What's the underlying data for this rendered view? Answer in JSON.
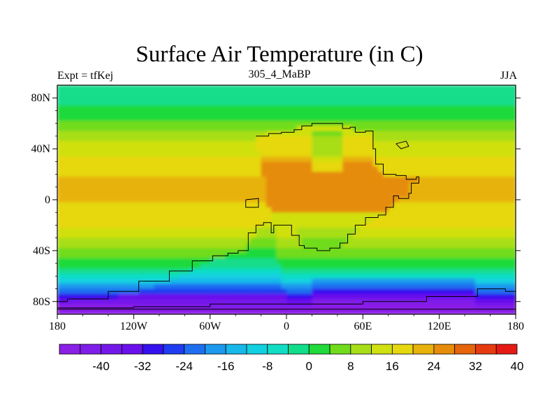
{
  "header": {
    "title": "Surface Air Temperature (in C)",
    "left": "Expt = tfKej",
    "center": "305_4_MaBP",
    "right": "JJA"
  },
  "axes": {
    "lat_ticks": [
      {
        "value": 80,
        "label": "80N"
      },
      {
        "value": 40,
        "label": "40N"
      },
      {
        "value": 0,
        "label": "0"
      },
      {
        "value": -40,
        "label": "40S"
      },
      {
        "value": -80,
        "label": "80S"
      }
    ],
    "lon_ticks": [
      {
        "value": -180,
        "label": "180"
      },
      {
        "value": -120,
        "label": "120W"
      },
      {
        "value": -60,
        "label": "60W"
      },
      {
        "value": 0,
        "label": "0"
      },
      {
        "value": 60,
        "label": "60E"
      },
      {
        "value": 120,
        "label": "120E"
      },
      {
        "value": 180,
        "label": "180"
      }
    ],
    "lon_range": [
      -180,
      180
    ],
    "lat_range": [
      -90,
      90
    ]
  },
  "colorbar": {
    "colors": [
      "#8a1fe6",
      "#7f1ee8",
      "#7418ea",
      "#6a10ec",
      "#3410ee",
      "#1f3cf0",
      "#1f6ef0",
      "#1c98ee",
      "#17b8ea",
      "#12d0e0",
      "#11ddc4",
      "#12dd8a",
      "#1fda3a",
      "#70dc1c",
      "#a8de18",
      "#d0e010",
      "#e6d810",
      "#e8b20c",
      "#e68c0a",
      "#e6640a",
      "#e63a10",
      "#e61a14"
    ],
    "labels": [
      {
        "boundary": 2,
        "text": "-40"
      },
      {
        "boundary": 4,
        "text": "-32"
      },
      {
        "boundary": 6,
        "text": "-24"
      },
      {
        "boundary": 8,
        "text": "-16"
      },
      {
        "boundary": 10,
        "text": "-8"
      },
      {
        "boundary": 12,
        "text": "0"
      },
      {
        "boundary": 14,
        "text": "8"
      },
      {
        "boundary": 16,
        "text": "16"
      },
      {
        "boundary": 18,
        "text": "24"
      },
      {
        "boundary": 20,
        "text": "32"
      },
      {
        "boundary": 22,
        "text": "40"
      }
    ]
  },
  "chart_data": {
    "type": "heatmap",
    "title": "Surface Air Temperature (in C)",
    "variable": "Surface Air Temperature",
    "units": "C",
    "season": "JJA",
    "experiment": "tfKej",
    "period": "305_4_MaBP",
    "xlim": [
      -180,
      180
    ],
    "ylim": [
      -90,
      90
    ],
    "zonal_profile_ocean": [
      {
        "lat": 90,
        "t": 2
      },
      {
        "lat": 75,
        "t": 4
      },
      {
        "lat": 62,
        "t": 8
      },
      {
        "lat": 52,
        "t": 14
      },
      {
        "lat": 40,
        "t": 18
      },
      {
        "lat": 28,
        "t": 22
      },
      {
        "lat": 14,
        "t": 25
      },
      {
        "lat": 0,
        "t": 24
      },
      {
        "lat": -12,
        "t": 22
      },
      {
        "lat": -24,
        "t": 19
      },
      {
        "lat": -34,
        "t": 14
      },
      {
        "lat": -44,
        "t": 9
      },
      {
        "lat": -54,
        "t": 3
      },
      {
        "lat": -64,
        "t": -8
      },
      {
        "lat": -74,
        "t": -22
      },
      {
        "lat": -84,
        "t": -38
      },
      {
        "lat": -90,
        "t": -44
      }
    ],
    "continent_outline": [
      [
        -24,
        50
      ],
      [
        -14,
        52
      ],
      [
        -4,
        53
      ],
      [
        6,
        55
      ],
      [
        12,
        58
      ],
      [
        20,
        60
      ],
      [
        36,
        60
      ],
      [
        44,
        56
      ],
      [
        50,
        57
      ],
      [
        54,
        53
      ],
      [
        62,
        54
      ],
      [
        68,
        52
      ],
      [
        68,
        40
      ],
      [
        70,
        28
      ],
      [
        76,
        20
      ],
      [
        86,
        19
      ],
      [
        94,
        16
      ],
      [
        102,
        18
      ],
      [
        104,
        13
      ],
      [
        98,
        12
      ],
      [
        98,
        5
      ],
      [
        96,
        1
      ],
      [
        88,
        3
      ],
      [
        84,
        -6
      ],
      [
        78,
        -12
      ],
      [
        72,
        -14
      ],
      [
        62,
        -20
      ],
      [
        54,
        -27
      ],
      [
        48,
        -34
      ],
      [
        42,
        -38
      ],
      [
        34,
        -40
      ],
      [
        24,
        -38
      ],
      [
        14,
        -36
      ],
      [
        10,
        -28
      ],
      [
        4,
        -20
      ],
      [
        -4,
        -20
      ],
      [
        -10,
        -26
      ],
      [
        -12,
        -18
      ],
      [
        -18,
        -20
      ],
      [
        -24,
        -26
      ],
      [
        -30,
        -34
      ],
      [
        -30,
        -40
      ],
      [
        -38,
        -42
      ],
      [
        -46,
        -44
      ],
      [
        -58,
        -48
      ],
      [
        -74,
        -56
      ],
      [
        -92,
        -64
      ],
      [
        -116,
        -72
      ],
      [
        -140,
        -78
      ],
      [
        -172,
        -80
      ],
      [
        -180,
        -82
      ],
      [
        -180,
        -85
      ],
      [
        -120,
        -84
      ],
      [
        -60,
        -82
      ],
      [
        0,
        -82
      ],
      [
        60,
        -80
      ],
      [
        110,
        -76
      ],
      [
        150,
        -70
      ],
      [
        172,
        -72
      ],
      [
        180,
        -76
      ],
      [
        180,
        -86
      ],
      [
        -180,
        -86
      ],
      [
        -180,
        -90
      ],
      [
        180,
        -90
      ]
    ],
    "colorbar_levels": [
      -44,
      -40,
      -36,
      -32,
      -28,
      -24,
      -20,
      -16,
      -12,
      -8,
      -4,
      0,
      4,
      8,
      12,
      16,
      20,
      24,
      28,
      32,
      36,
      40,
      44
    ]
  }
}
